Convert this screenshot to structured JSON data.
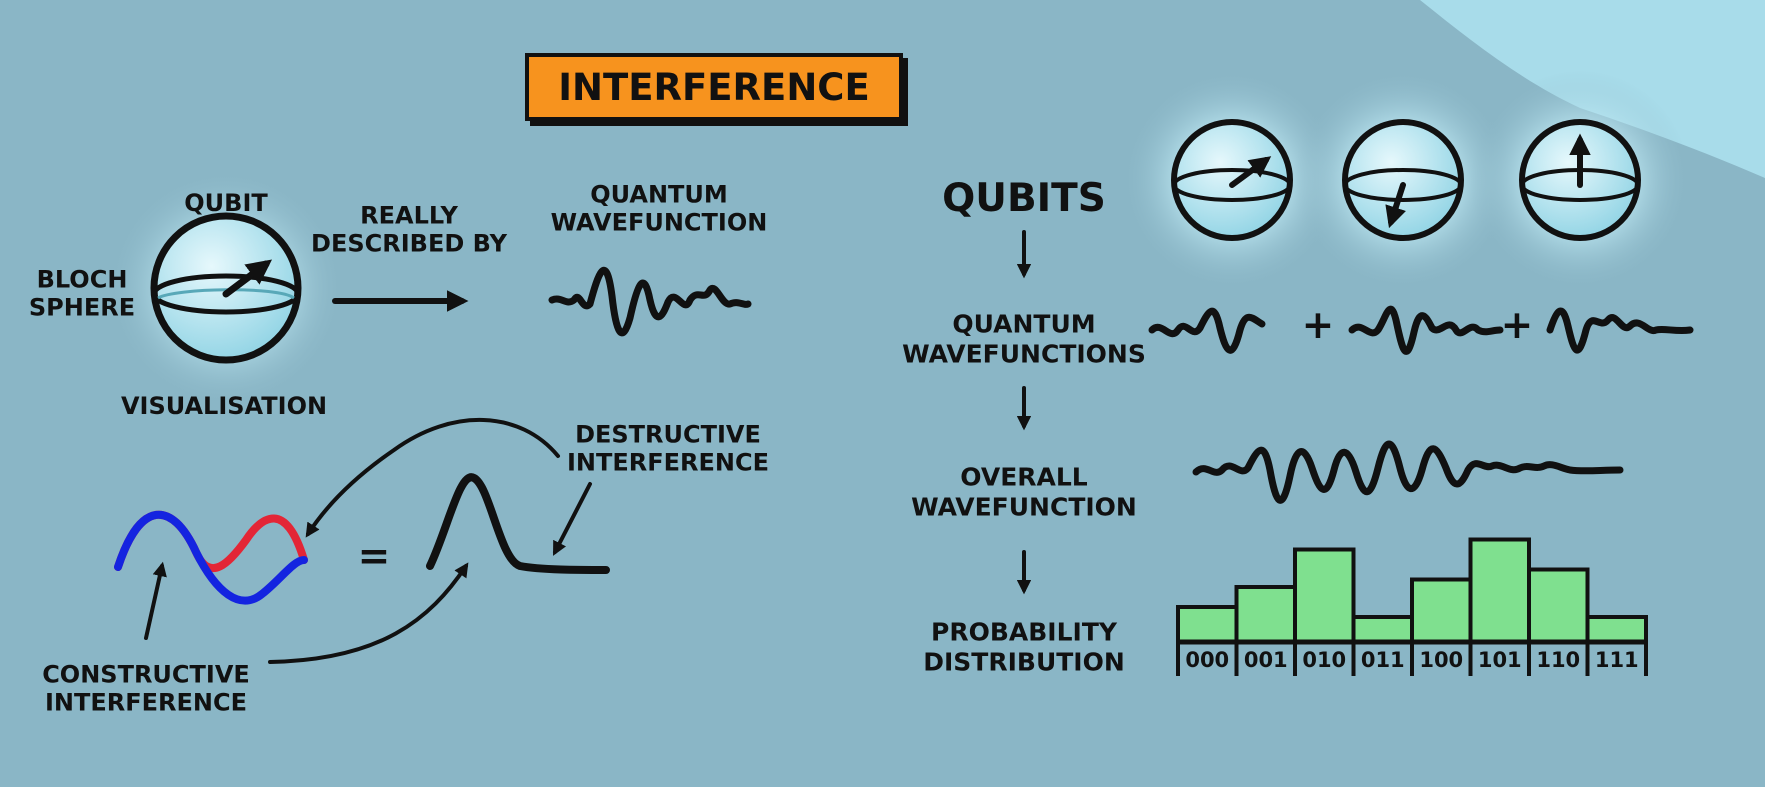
{
  "title": "INTERFERENCE",
  "left": {
    "qubit": "QUBIT",
    "bloch": [
      "BLOCH",
      "SPHERE"
    ],
    "visualisation": "VISUALISATION",
    "described_by": [
      "REALLY",
      "DESCRIBED BY"
    ],
    "quantum_wavefunction": [
      "QUANTUM",
      "WAVEFUNCTION"
    ],
    "destructive": [
      "DESTRUCTIVE",
      "INTERFERENCE"
    ],
    "constructive": [
      "CONSTRUCTIVE",
      "INTERFERENCE"
    ],
    "wave_colors": {
      "red": "#e32636",
      "blue": "#1424e0"
    },
    "equals": "="
  },
  "right": {
    "qubits": "QUBITS",
    "quantum_wavefunctions": [
      "QUANTUM",
      "WAVEFUNCTIONS"
    ],
    "overall_wavefunction": [
      "OVERALL",
      "WAVEFUNCTION"
    ],
    "probability_distribution": [
      "PROBABILITY",
      "DISTRIBUTION"
    ],
    "plus": "+"
  },
  "colors": {
    "background": "#8ab6c6",
    "corner": "#a8dcea",
    "title_fill": "#f7931e",
    "sphere": "#aee3ee",
    "bar": "#7fe08f"
  },
  "chart_data": {
    "type": "bar",
    "categories": [
      "000",
      "001",
      "010",
      "011",
      "100",
      "101",
      "110",
      "111"
    ],
    "values": [
      0.28,
      0.44,
      0.74,
      0.2,
      0.5,
      0.82,
      0.58,
      0.2
    ],
    "title": "",
    "xlabel": "",
    "ylabel": ""
  }
}
